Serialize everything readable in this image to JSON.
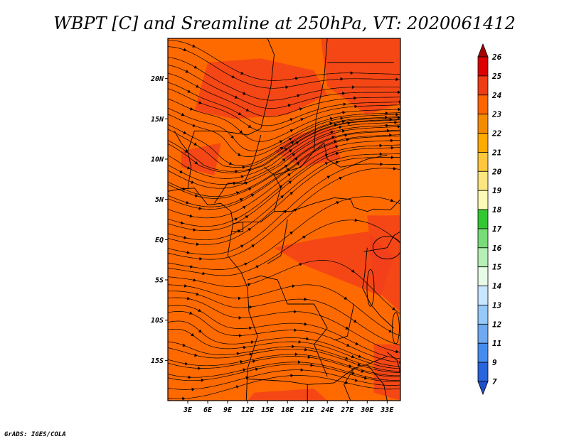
{
  "title": "WBPT [C] and Sreamline at 250hPa, VT: 2020061412",
  "credit": "GrADS: IGES/COLA",
  "map": {
    "lon_range": [
      0,
      35
    ],
    "lat_range": [
      -20,
      25
    ],
    "lon_ticks": [
      {
        "value": 3,
        "label": "3E"
      },
      {
        "value": 6,
        "label": "6E"
      },
      {
        "value": 9,
        "label": "9E"
      },
      {
        "value": 12,
        "label": "12E"
      },
      {
        "value": 15,
        "label": "15E"
      },
      {
        "value": 18,
        "label": "18E"
      },
      {
        "value": 21,
        "label": "21E"
      },
      {
        "value": 24,
        "label": "24E"
      },
      {
        "value": 27,
        "label": "27E"
      },
      {
        "value": 30,
        "label": "30E"
      },
      {
        "value": 33,
        "label": "33E"
      }
    ],
    "lat_ticks": [
      {
        "value": 20,
        "label": "20N"
      },
      {
        "value": 15,
        "label": "15N"
      },
      {
        "value": 10,
        "label": "10N"
      },
      {
        "value": 5,
        "label": "5N"
      },
      {
        "value": 0,
        "label": "EQ"
      },
      {
        "value": -5,
        "label": "5S"
      },
      {
        "value": -10,
        "label": "10S"
      },
      {
        "value": -15,
        "label": "15S"
      }
    ],
    "base_fill_color": "#ff6a00",
    "warm_fill_color": "#f23c1c",
    "line_color": "#000000"
  },
  "colorbar": {
    "levels": [
      {
        "label": "26",
        "color": "#a50000"
      },
      {
        "label": "25",
        "color": "#dc0000"
      },
      {
        "label": "24",
        "color": "#f03c14"
      },
      {
        "label": "23",
        "color": "#ff6400"
      },
      {
        "label": "22",
        "color": "#f58c00"
      },
      {
        "label": "21",
        "color": "#ffaa00"
      },
      {
        "label": "20",
        "color": "#ffc83c"
      },
      {
        "label": "19",
        "color": "#fde680"
      },
      {
        "label": "18",
        "color": "#fdfab4"
      },
      {
        "label": "17",
        "color": "#32c832"
      },
      {
        "label": "16",
        "color": "#78dc78"
      },
      {
        "label": "15",
        "color": "#b4f0b4"
      },
      {
        "label": "14",
        "color": "#e6fae6"
      },
      {
        "label": "13",
        "color": "#c8e6ff"
      },
      {
        "label": "12",
        "color": "#96c8fa"
      },
      {
        "label": "11",
        "color": "#6eaaf0"
      },
      {
        "label": "9",
        "color": "#468cf0"
      },
      {
        "label": "7",
        "color": "#2864dc"
      }
    ],
    "bottom_color": "#1e50c8"
  }
}
